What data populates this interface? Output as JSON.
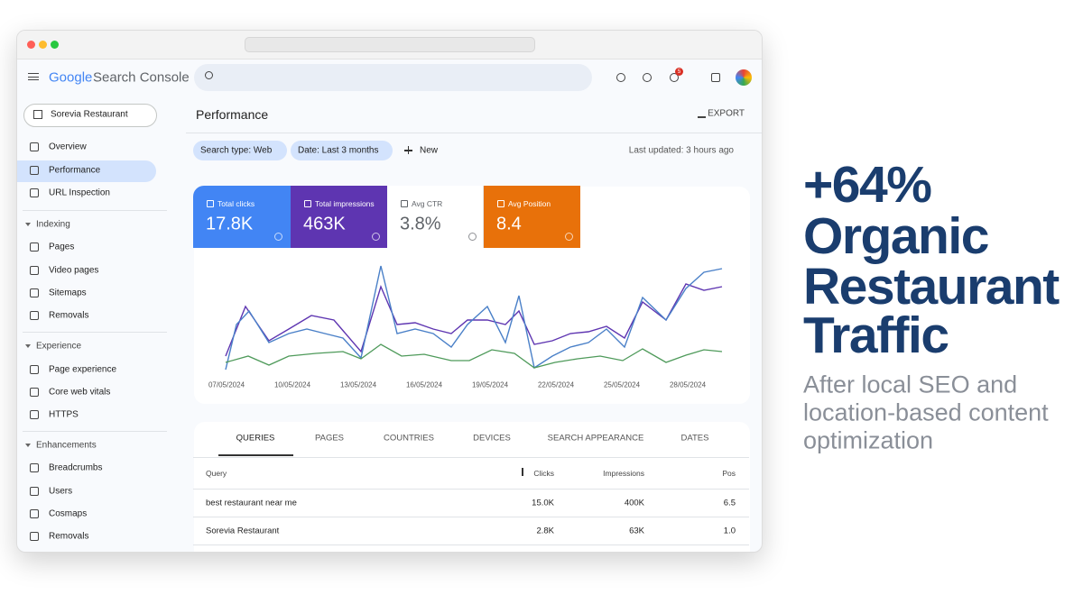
{
  "app": {
    "brand": "Google",
    "product": "Search Console",
    "notifications": 5
  },
  "sidebar": {
    "property": "Sorevia Restaurant",
    "sections": [
      {
        "items": [
          "Overview",
          "Performance",
          "URL Inspection"
        ]
      },
      {
        "heading": "Indexing",
        "items": [
          "Pages",
          "Video pages",
          "Sitemaps",
          "Removals"
        ]
      },
      {
        "heading": "Experience",
        "items": [
          "Page experience",
          "Core web vitals",
          "HTTPS"
        ]
      },
      {
        "heading": "Enhancements",
        "items": [
          "Breadcrumbs",
          "Users",
          "Cosmaps",
          "Removals"
        ]
      }
    ]
  },
  "performance": {
    "title": "Performance",
    "export": "EXPORT",
    "filters": [
      "Search type: Web",
      "Date: Last 3 months"
    ],
    "new": "New",
    "last_updated": "Last updated: 3 hours ago",
    "metrics": [
      {
        "label": "Total clicks",
        "value": "17.8K"
      },
      {
        "label": "Total impressions",
        "value": "463K"
      },
      {
        "label": "Avg CTR",
        "value": "3.8%"
      },
      {
        "label": "Avg Position",
        "value": "8.4"
      }
    ],
    "chart_dates": [
      "07/05/2024",
      "10/05/2024",
      "13/05/2024",
      "16/05/2024",
      "19/05/2024",
      "22/05/2024",
      "25/05/2024",
      "28/05/2024"
    ]
  },
  "tabs": [
    "QUERIES",
    "PAGES",
    "COUNTRIES",
    "DEVICES",
    "SEARCH APPEARANCE",
    "DATES"
  ],
  "table": {
    "columns": [
      "Query",
      "Clicks",
      "Impressions",
      "Pos"
    ],
    "rows": [
      [
        "best restaurant near me",
        "15.0K",
        "400K",
        "6.5"
      ],
      [
        "Sorevia Restaurant",
        "2.8K",
        "63K",
        "1.0"
      ]
    ]
  },
  "hero": {
    "headline": [
      "+64%",
      "Organic",
      "Restaurant",
      "Traffic"
    ],
    "subtitle": [
      "After local SEO and",
      "location-based content",
      "optimization"
    ]
  }
}
